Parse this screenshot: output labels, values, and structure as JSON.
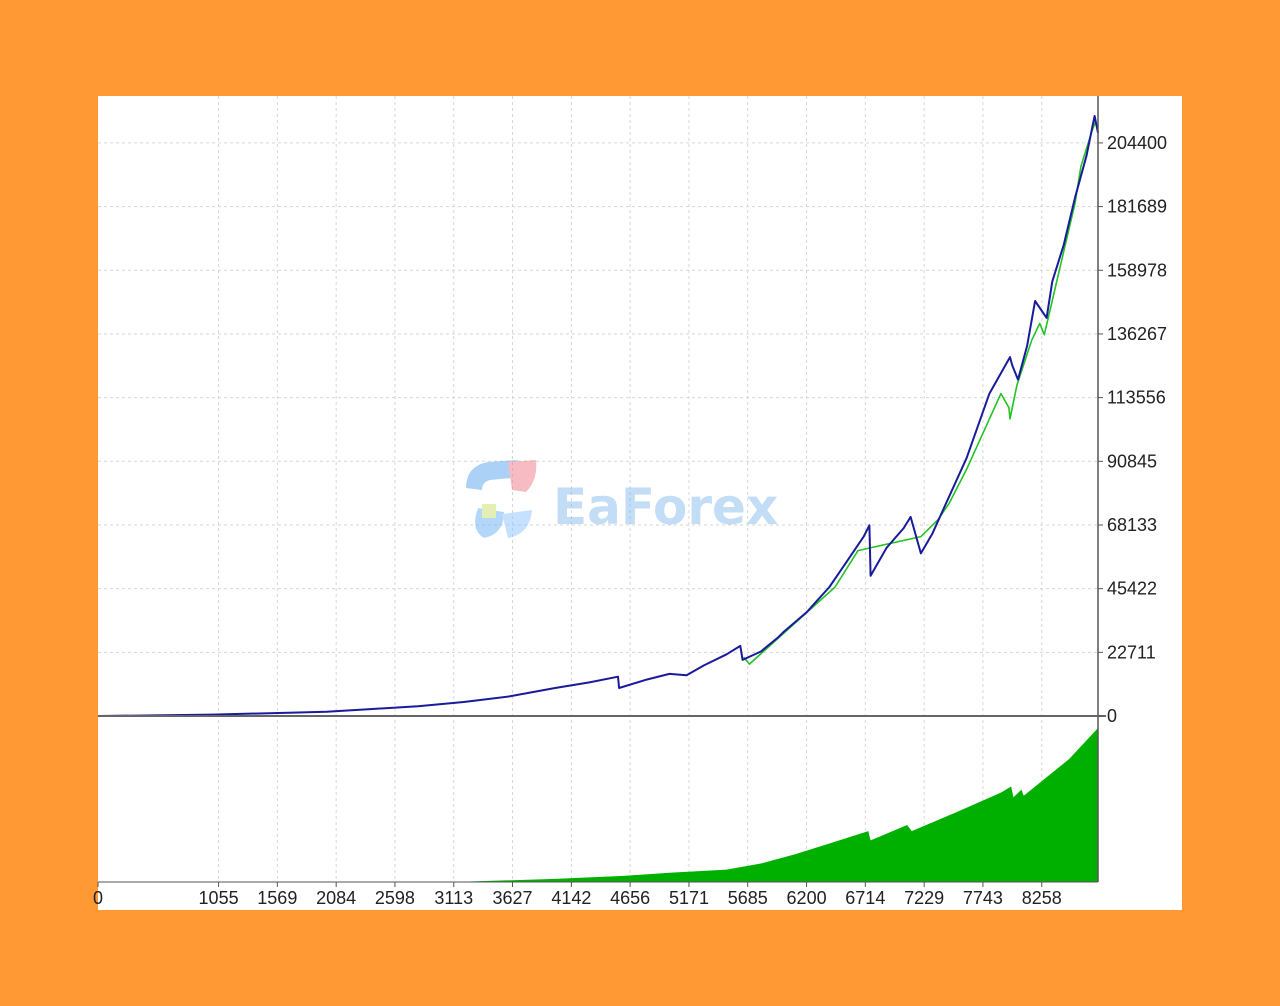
{
  "colors": {
    "background": "#FF9933",
    "balance_line": "#1a1a9c",
    "equity_line": "#22c322",
    "deposit_area": "#00b000",
    "grid": "#d6d6d6"
  },
  "watermark": {
    "text": "EaForex"
  },
  "chart_data": {
    "type": "line",
    "title": "",
    "xlabel": "",
    "ylabel": "",
    "x_ticks": [
      0,
      1055,
      1569,
      2084,
      2598,
      3113,
      3627,
      4142,
      4656,
      5171,
      5685,
      6200,
      6714,
      7229,
      7743,
      8258
    ],
    "y_ticks": [
      0,
      22711,
      45422,
      68133,
      90845,
      113556,
      136267,
      158978,
      181689,
      204400
    ],
    "xlim": [
      0,
      8750
    ],
    "ylim": [
      0,
      214000
    ],
    "grid": true,
    "series": [
      {
        "kind": "balance",
        "x": [
          0,
          500,
          1000,
          1500,
          2000,
          2400,
          2800,
          3200,
          3600,
          4000,
          4300,
          4550,
          4560,
          4800,
          5000,
          5150,
          5300,
          5500,
          5620,
          5640,
          5800,
          5950,
          6000,
          6200,
          6400,
          6550,
          6700,
          6750,
          6760,
          6900,
          7050,
          7110,
          7200,
          7300,
          7400,
          7600,
          7800,
          7980,
          8000,
          8050,
          8130,
          8200,
          8300,
          8350,
          8450,
          8550,
          8650,
          8700,
          8720,
          8750
        ],
        "y": [
          0,
          200,
          500,
          1000,
          1500,
          2500,
          3500,
          5000,
          7000,
          10000,
          12000,
          14000,
          10000,
          13000,
          15000,
          14500,
          18000,
          22000,
          25000,
          20000,
          23000,
          28000,
          30000,
          37000,
          46000,
          55000,
          64000,
          68000,
          50000,
          60000,
          67000,
          71000,
          58000,
          65000,
          74000,
          92000,
          115000,
          128000,
          125000,
          120000,
          132000,
          148000,
          142000,
          155000,
          168000,
          185000,
          200000,
          210000,
          214000,
          208000
        ]
      },
      {
        "kind": "equity",
        "x": [
          5650,
          5700,
          6450,
          6650,
          7200,
          7350,
          7450,
          7600,
          7900,
          7970,
          7980,
          8040,
          8170,
          8240,
          8280,
          8550,
          8600,
          8700,
          8730
        ],
        "y": [
          21000,
          18500,
          46000,
          59000,
          64000,
          70000,
          76000,
          88000,
          115000,
          110000,
          106000,
          118000,
          134000,
          140000,
          136000,
          183000,
          196000,
          209000,
          212000
        ]
      },
      {
        "kind": "deposit_load",
        "x": [
          3100,
          4000,
          4600,
          5000,
          5500,
          5800,
          6100,
          6400,
          6740,
          6760,
          7080,
          7120,
          7500,
          7900,
          7990,
          8010,
          8080,
          8100,
          8300,
          8500,
          8750
        ],
        "y": [
          0.0,
          0.02,
          0.04,
          0.06,
          0.08,
          0.12,
          0.18,
          0.25,
          0.33,
          0.27,
          0.37,
          0.33,
          0.45,
          0.58,
          0.62,
          0.55,
          0.6,
          0.56,
          0.68,
          0.8,
          1.0
        ]
      }
    ]
  }
}
